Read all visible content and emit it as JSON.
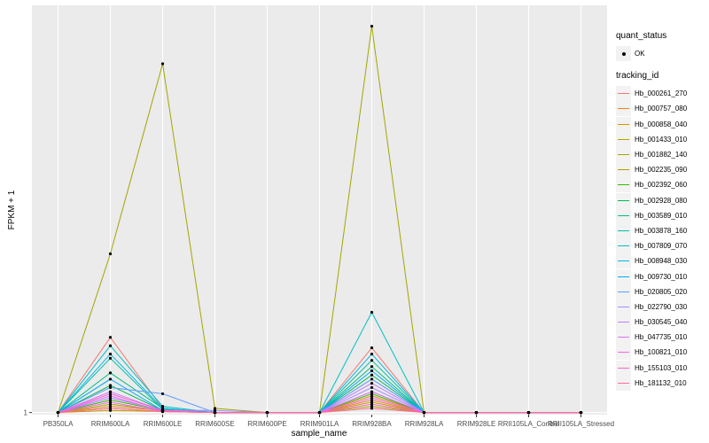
{
  "chart_data": {
    "type": "line",
    "xlabel": "sample_name",
    "ylabel": "FPKM + 1",
    "y_ticks": [
      {
        "value": 1,
        "label": "1"
      }
    ],
    "ylim": [
      0.9,
      20.5
    ],
    "categories": [
      "PB350LA",
      "RRIM600LA",
      "RRIM600LE",
      "RRIM600SE",
      "RRIM600PE",
      "RRIM901LA",
      "RRIM928BA",
      "RRIM928LA",
      "RRIM928LE",
      "RRII105LA_Control",
      "RRII105LA_Stressed"
    ],
    "legend": {
      "quant_status_title": "quant_status",
      "quant_status_items": [
        "OK"
      ],
      "tracking_id_title": "tracking_id"
    },
    "grid": true,
    "series": [
      {
        "name": "Hb_000261_270",
        "color": "#F8766D",
        "values": [
          1,
          4.6,
          1.2,
          1,
          1,
          1,
          4.1,
          1,
          1,
          1,
          1
        ]
      },
      {
        "name": "Hb_000757_080",
        "color": "#EA8331",
        "values": [
          1,
          1.3,
          1.1,
          1,
          1,
          1,
          1.6,
          1,
          1,
          1,
          1
        ]
      },
      {
        "name": "Hb_000858_040",
        "color": "#D89000",
        "values": [
          1,
          1.2,
          1.05,
          1,
          1,
          1,
          1.8,
          1,
          1,
          1,
          1
        ]
      },
      {
        "name": "Hb_001433_010",
        "color": "#C09B00",
        "values": [
          1,
          1.1,
          1.05,
          1,
          1,
          1,
          1.5,
          1,
          1,
          1,
          1
        ]
      },
      {
        "name": "Hb_001882_140",
        "color": "#A3A500",
        "values": [
          1,
          1.4,
          1.1,
          1,
          1,
          1,
          1.3,
          1,
          1,
          1,
          1
        ]
      },
      {
        "name": "Hb_002235_090",
        "color": "#A3A500",
        "values": [
          1,
          8.6,
          17.7,
          1.2,
          1,
          1,
          19.5,
          1,
          1,
          1,
          1
        ]
      },
      {
        "name": "Hb_002392_060",
        "color": "#39B600",
        "values": [
          1,
          1.6,
          1.1,
          1,
          1,
          1,
          1.9,
          1,
          1,
          1,
          1
        ]
      },
      {
        "name": "Hb_002928_080",
        "color": "#00BB4E",
        "values": [
          1,
          2.3,
          1.1,
          1,
          1,
          1,
          2.8,
          1,
          1,
          1,
          1
        ]
      },
      {
        "name": "Hb_003589_010",
        "color": "#00BF7D",
        "values": [
          1,
          2.9,
          1.2,
          1,
          1,
          1,
          3.2,
          1,
          1,
          1,
          1
        ]
      },
      {
        "name": "Hb_003878_160",
        "color": "#00C1A3",
        "values": [
          1,
          3.6,
          1.15,
          1,
          1,
          1,
          3.5,
          1,
          1,
          1,
          1
        ]
      },
      {
        "name": "Hb_007809_070",
        "color": "#00BFC4",
        "values": [
          1,
          4.2,
          1.3,
          1,
          1,
          1,
          5.8,
          1,
          1,
          1,
          1
        ]
      },
      {
        "name": "Hb_008948_030",
        "color": "#00B8E5",
        "values": [
          1,
          3.8,
          1.2,
          1,
          1,
          1,
          3.8,
          1,
          1,
          1,
          1
        ]
      },
      {
        "name": "Hb_009730_010",
        "color": "#00A9FF",
        "values": [
          1,
          2.6,
          1.1,
          1,
          1,
          1,
          3.0,
          1,
          1,
          1,
          1
        ]
      },
      {
        "name": "Hb_020805_020",
        "color": "#619CFF",
        "values": [
          1,
          2.2,
          1.9,
          1,
          1,
          1,
          2.6,
          1,
          1,
          1,
          1
        ]
      },
      {
        "name": "Hb_022790_030",
        "color": "#A58AFF",
        "values": [
          1,
          1.7,
          1.1,
          1.1,
          1,
          1,
          2.2,
          1,
          1,
          1,
          1
        ]
      },
      {
        "name": "Hb_030545_040",
        "color": "#C77CFF",
        "values": [
          1,
          2.0,
          1.1,
          1,
          1,
          1,
          2.4,
          1,
          1,
          1,
          1
        ]
      },
      {
        "name": "Hb_047735_010",
        "color": "#DF70F8",
        "values": [
          1,
          1.8,
          1.05,
          1,
          1,
          1,
          2.0,
          1,
          1,
          1,
          1
        ]
      },
      {
        "name": "Hb_100821_010",
        "color": "#F564E3",
        "values": [
          1,
          1.5,
          1.05,
          1,
          1,
          1,
          1.7,
          1,
          1,
          1,
          1
        ]
      },
      {
        "name": "Hb_155103_010",
        "color": "#FF61C3",
        "values": [
          1,
          1.9,
          1.1,
          1,
          1,
          1,
          1.4,
          1,
          1,
          1,
          1
        ]
      },
      {
        "name": "Hb_181132_010",
        "color": "#FF6C91",
        "values": [
          1,
          1.2,
          1.05,
          1,
          1,
          1,
          1.2,
          1,
          1,
          1,
          1
        ]
      }
    ]
  }
}
